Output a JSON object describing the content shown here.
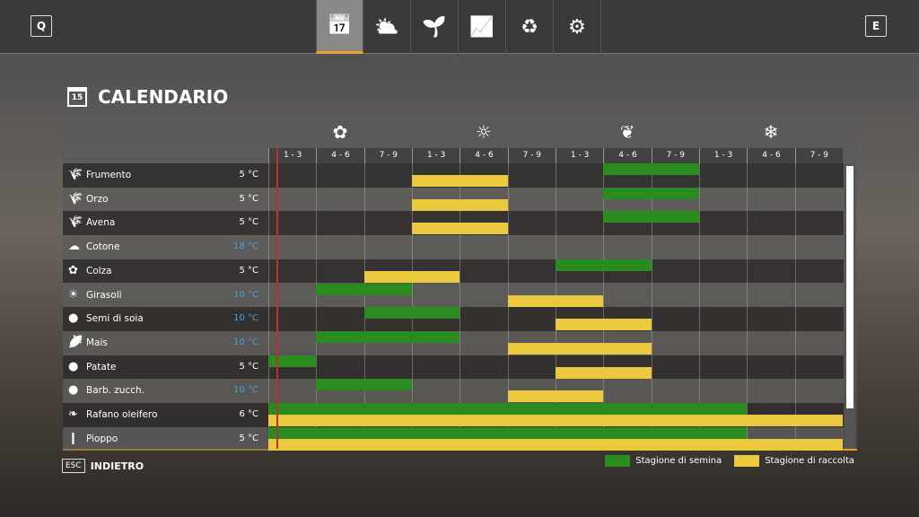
{
  "topbar": {
    "left_key": "Q",
    "right_key": "E",
    "tabs": [
      {
        "icon": "calendar-icon",
        "glyph": "📅"
      },
      {
        "icon": "weather-icon",
        "glyph": "⛅"
      },
      {
        "icon": "sprout-icon",
        "glyph": "🌱"
      },
      {
        "icon": "prices-chart-icon",
        "glyph": "📈"
      },
      {
        "icon": "crop-rotation-icon",
        "glyph": "♻"
      },
      {
        "icon": "settings-icon",
        "glyph": "⚙"
      }
    ],
    "active_tab": 0
  },
  "title": "CALENDARIO",
  "title_icon_day": "15",
  "seasons": [
    {
      "icon": "spring-flower-icon",
      "glyph": "✿"
    },
    {
      "icon": "summer-sun-icon",
      "glyph": "☼"
    },
    {
      "icon": "autumn-leaf-icon",
      "glyph": "❦"
    },
    {
      "icon": "winter-snow-icon",
      "glyph": "❄"
    }
  ],
  "periods": [
    "1 - 3",
    "4 - 6",
    "7 - 9",
    "1 - 3",
    "4 - 6",
    "7 - 9",
    "1 - 3",
    "4 - 6",
    "7 - 9",
    "1 - 3",
    "4 - 6",
    "7 - 9"
  ],
  "colors": {
    "sow": "#2a8c1e",
    "harvest": "#ebc93f",
    "temp_warm": "#3fa4dc"
  },
  "crops": [
    {
      "name": "Frumento",
      "temp": "5 °C",
      "warm": false,
      "glyph": "🌾",
      "sow": [
        7,
        8
      ],
      "harvest": [
        3,
        4
      ]
    },
    {
      "name": "Orzo",
      "temp": "5 °C",
      "warm": false,
      "glyph": "🌾",
      "sow": [
        7,
        8
      ],
      "harvest": [
        3,
        4
      ]
    },
    {
      "name": "Avena",
      "temp": "5 °C",
      "warm": false,
      "glyph": "🌾",
      "sow": [
        7,
        8
      ],
      "harvest": [
        3,
        4
      ]
    },
    {
      "name": "Cotone",
      "temp": "18 °C",
      "warm": true,
      "glyph": "☁",
      "sow": null,
      "harvest": null
    },
    {
      "name": "Colza",
      "temp": "5 °C",
      "warm": false,
      "glyph": "✿",
      "sow": [
        6,
        7
      ],
      "harvest": [
        2,
        3
      ]
    },
    {
      "name": "Girasoli",
      "temp": "10 °C",
      "warm": true,
      "glyph": "☀",
      "sow": [
        1,
        2
      ],
      "harvest": [
        5,
        6
      ]
    },
    {
      "name": "Semi di soia",
      "temp": "10 °C",
      "warm": true,
      "glyph": "●",
      "sow": [
        2,
        3
      ],
      "harvest": [
        6,
        7
      ]
    },
    {
      "name": "Mais",
      "temp": "10 °C",
      "warm": true,
      "glyph": "🌽",
      "sow": [
        1,
        3
      ],
      "harvest": [
        5,
        7
      ]
    },
    {
      "name": "Patate",
      "temp": "5 °C",
      "warm": false,
      "glyph": "●",
      "sow": [
        0,
        0
      ],
      "harvest": [
        6,
        7
      ]
    },
    {
      "name": "Barb. zucch.",
      "temp": "10 °C",
      "warm": true,
      "glyph": "●",
      "sow": [
        1,
        2
      ],
      "harvest": [
        5,
        6
      ]
    },
    {
      "name": "Rafano oleifero",
      "temp": "6 °C",
      "warm": false,
      "glyph": "❧",
      "sow": [
        0,
        9
      ],
      "harvest": [
        0,
        11
      ]
    },
    {
      "name": "Pioppo",
      "temp": "5 °C",
      "warm": false,
      "glyph": "❙",
      "sow": [
        0,
        9
      ],
      "harvest": [
        0,
        11
      ]
    }
  ],
  "footer": {
    "esc_key": "ESC",
    "back_label": "INDIETRO"
  },
  "legend": {
    "sow_label": "Stagione di semina",
    "harvest_label": "Stagione di raccolta"
  }
}
